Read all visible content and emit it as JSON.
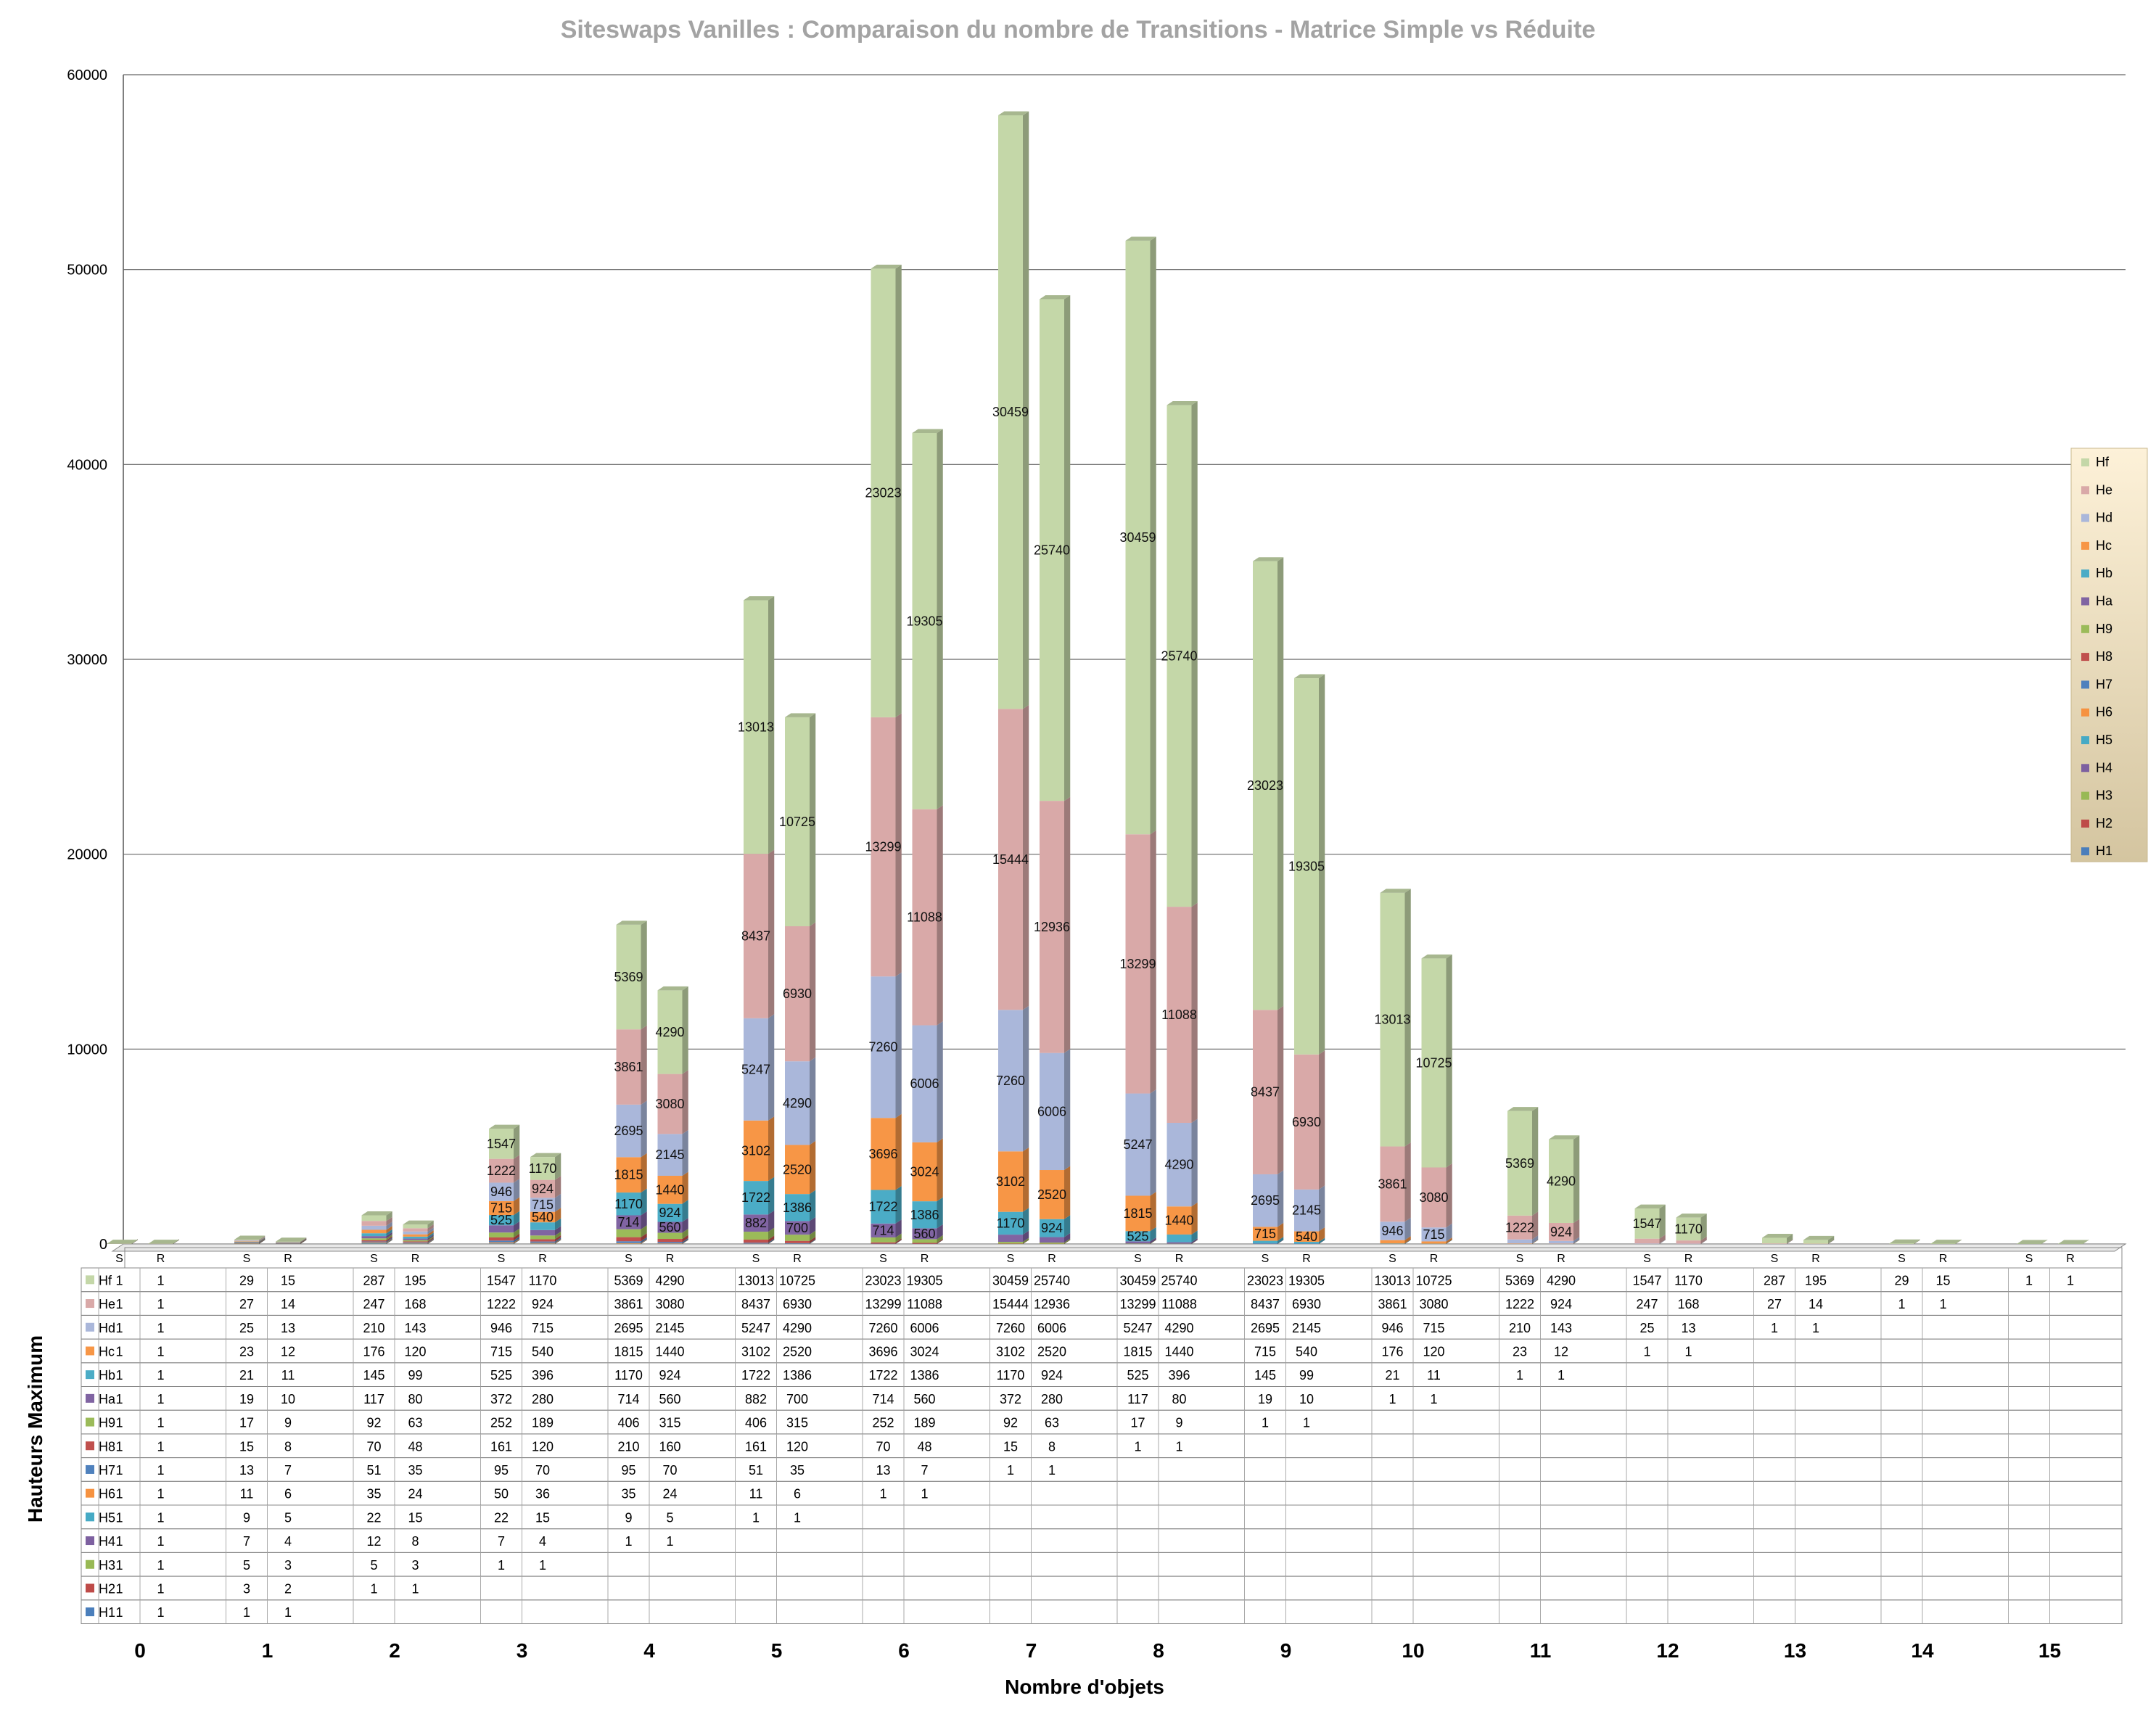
{
  "chart_data": {
    "type": "bar",
    "stacked": true,
    "title": "Siteswaps Vanilles : Comparaison du nombre de Transitions  -  Matrice Simple vs Réduite",
    "xlabel": "Nombre d'objets",
    "ylabel": "Hauteurs Maximum",
    "ylim": [
      0,
      60000
    ],
    "yticks": [
      0,
      10000,
      20000,
      30000,
      40000,
      50000,
      60000
    ],
    "grid": true,
    "legend_position": "right",
    "categories": [
      "0",
      "1",
      "2",
      "3",
      "4",
      "5",
      "6",
      "7",
      "8",
      "9",
      "10",
      "11",
      "12",
      "13",
      "14",
      "15"
    ],
    "sub_labels": [
      "S",
      "R"
    ],
    "series": [
      {
        "name": "H1",
        "color": "#4a7ebb",
        "S": [
          1,
          1,
          null,
          null,
          null,
          null,
          null,
          null,
          null,
          null,
          null,
          null,
          null,
          null,
          null,
          null
        ],
        "R": [
          1,
          1,
          null,
          null,
          null,
          null,
          null,
          null,
          null,
          null,
          null,
          null,
          null,
          null,
          null,
          null
        ]
      },
      {
        "name": "H2",
        "color": "#be4b48",
        "S": [
          1,
          3,
          1,
          null,
          null,
          null,
          null,
          null,
          null,
          null,
          null,
          null,
          null,
          null,
          null,
          null
        ],
        "R": [
          1,
          2,
          1,
          null,
          null,
          null,
          null,
          null,
          null,
          null,
          null,
          null,
          null,
          null,
          null,
          null
        ]
      },
      {
        "name": "H3",
        "color": "#98b954",
        "S": [
          1,
          5,
          5,
          1,
          null,
          null,
          null,
          null,
          null,
          null,
          null,
          null,
          null,
          null,
          null,
          null
        ],
        "R": [
          1,
          3,
          3,
          1,
          null,
          null,
          null,
          null,
          null,
          null,
          null,
          null,
          null,
          null,
          null,
          null
        ]
      },
      {
        "name": "H4",
        "color": "#7d60a0",
        "S": [
          1,
          7,
          12,
          7,
          1,
          null,
          null,
          null,
          null,
          null,
          null,
          null,
          null,
          null,
          null,
          null
        ],
        "R": [
          1,
          4,
          8,
          4,
          1,
          null,
          null,
          null,
          null,
          null,
          null,
          null,
          null,
          null,
          null,
          null
        ]
      },
      {
        "name": "H5",
        "color": "#46aac5",
        "S": [
          1,
          9,
          22,
          22,
          9,
          1,
          null,
          null,
          null,
          null,
          null,
          null,
          null,
          null,
          null,
          null
        ],
        "R": [
          1,
          5,
          15,
          15,
          5,
          1,
          null,
          null,
          null,
          null,
          null,
          null,
          null,
          null,
          null,
          null
        ]
      },
      {
        "name": "H6",
        "color": "#f69240",
        "S": [
          1,
          11,
          35,
          50,
          35,
          11,
          1,
          null,
          null,
          null,
          null,
          null,
          null,
          null,
          null,
          null
        ],
        "R": [
          1,
          6,
          24,
          36,
          24,
          6,
          1,
          null,
          null,
          null,
          null,
          null,
          null,
          null,
          null,
          null
        ]
      },
      {
        "name": "H7",
        "color": "#4f81bd",
        "S": [
          1,
          13,
          51,
          95,
          95,
          51,
          13,
          1,
          null,
          null,
          null,
          null,
          null,
          null,
          null,
          null
        ],
        "R": [
          1,
          7,
          35,
          70,
          70,
          35,
          7,
          1,
          null,
          null,
          null,
          null,
          null,
          null,
          null,
          null
        ]
      },
      {
        "name": "H8",
        "color": "#c0504d",
        "S": [
          1,
          15,
          70,
          161,
          210,
          161,
          70,
          15,
          1,
          null,
          null,
          null,
          null,
          null,
          null,
          null
        ],
        "R": [
          1,
          8,
          48,
          120,
          160,
          120,
          48,
          8,
          1,
          null,
          null,
          null,
          null,
          null,
          null,
          null
        ]
      },
      {
        "name": "H9",
        "color": "#9bbb59",
        "S": [
          1,
          17,
          92,
          252,
          406,
          406,
          252,
          92,
          17,
          1,
          null,
          null,
          null,
          null,
          null,
          null
        ],
        "R": [
          1,
          9,
          63,
          189,
          315,
          315,
          189,
          63,
          9,
          1,
          null,
          null,
          null,
          null,
          null,
          null
        ]
      },
      {
        "name": "Ha",
        "color": "#8064a2",
        "S": [
          1,
          19,
          117,
          372,
          714,
          882,
          714,
          372,
          117,
          19,
          1,
          null,
          null,
          null,
          null,
          null
        ],
        "R": [
          1,
          10,
          80,
          280,
          560,
          700,
          560,
          280,
          80,
          10,
          1,
          null,
          null,
          null,
          null,
          null
        ]
      },
      {
        "name": "Hb",
        "color": "#4bacc6",
        "S": [
          1,
          21,
          145,
          525,
          1170,
          1722,
          1722,
          1170,
          525,
          145,
          21,
          1,
          null,
          null,
          null,
          null
        ],
        "R": [
          1,
          11,
          99,
          396,
          924,
          1386,
          1386,
          924,
          396,
          99,
          11,
          1,
          null,
          null,
          null,
          null
        ]
      },
      {
        "name": "Hc",
        "color": "#f79646",
        "S": [
          1,
          23,
          176,
          715,
          1815,
          3102,
          3696,
          3102,
          1815,
          715,
          176,
          23,
          1,
          null,
          null,
          null
        ],
        "R": [
          1,
          12,
          120,
          540,
          1440,
          2520,
          3024,
          2520,
          1440,
          540,
          120,
          12,
          1,
          null,
          null,
          null
        ]
      },
      {
        "name": "Hd",
        "color": "#aab7da",
        "S": [
          1,
          25,
          210,
          946,
          2695,
          5247,
          7260,
          7260,
          5247,
          2695,
          946,
          210,
          25,
          1,
          null,
          null
        ],
        "R": [
          1,
          13,
          143,
          715,
          2145,
          4290,
          6006,
          6006,
          4290,
          2145,
          715,
          143,
          13,
          1,
          null,
          null
        ]
      },
      {
        "name": "He",
        "color": "#d9a9a8",
        "S": [
          1,
          27,
          247,
          1222,
          3861,
          8437,
          13299,
          15444,
          13299,
          8437,
          3861,
          1222,
          247,
          27,
          1,
          null
        ],
        "R": [
          1,
          14,
          168,
          924,
          3080,
          6930,
          11088,
          12936,
          11088,
          6930,
          3080,
          924,
          168,
          14,
          1,
          null
        ]
      },
      {
        "name": "Hf",
        "color": "#c4d7a8",
        "S": [
          1,
          29,
          287,
          1547,
          5369,
          13013,
          23023,
          30459,
          30459,
          23023,
          13013,
          5369,
          1547,
          287,
          29,
          1
        ],
        "R": [
          1,
          15,
          195,
          1170,
          4290,
          10725,
          19305,
          25740,
          25740,
          19305,
          10725,
          4290,
          1170,
          195,
          15,
          1
        ]
      }
    ]
  }
}
